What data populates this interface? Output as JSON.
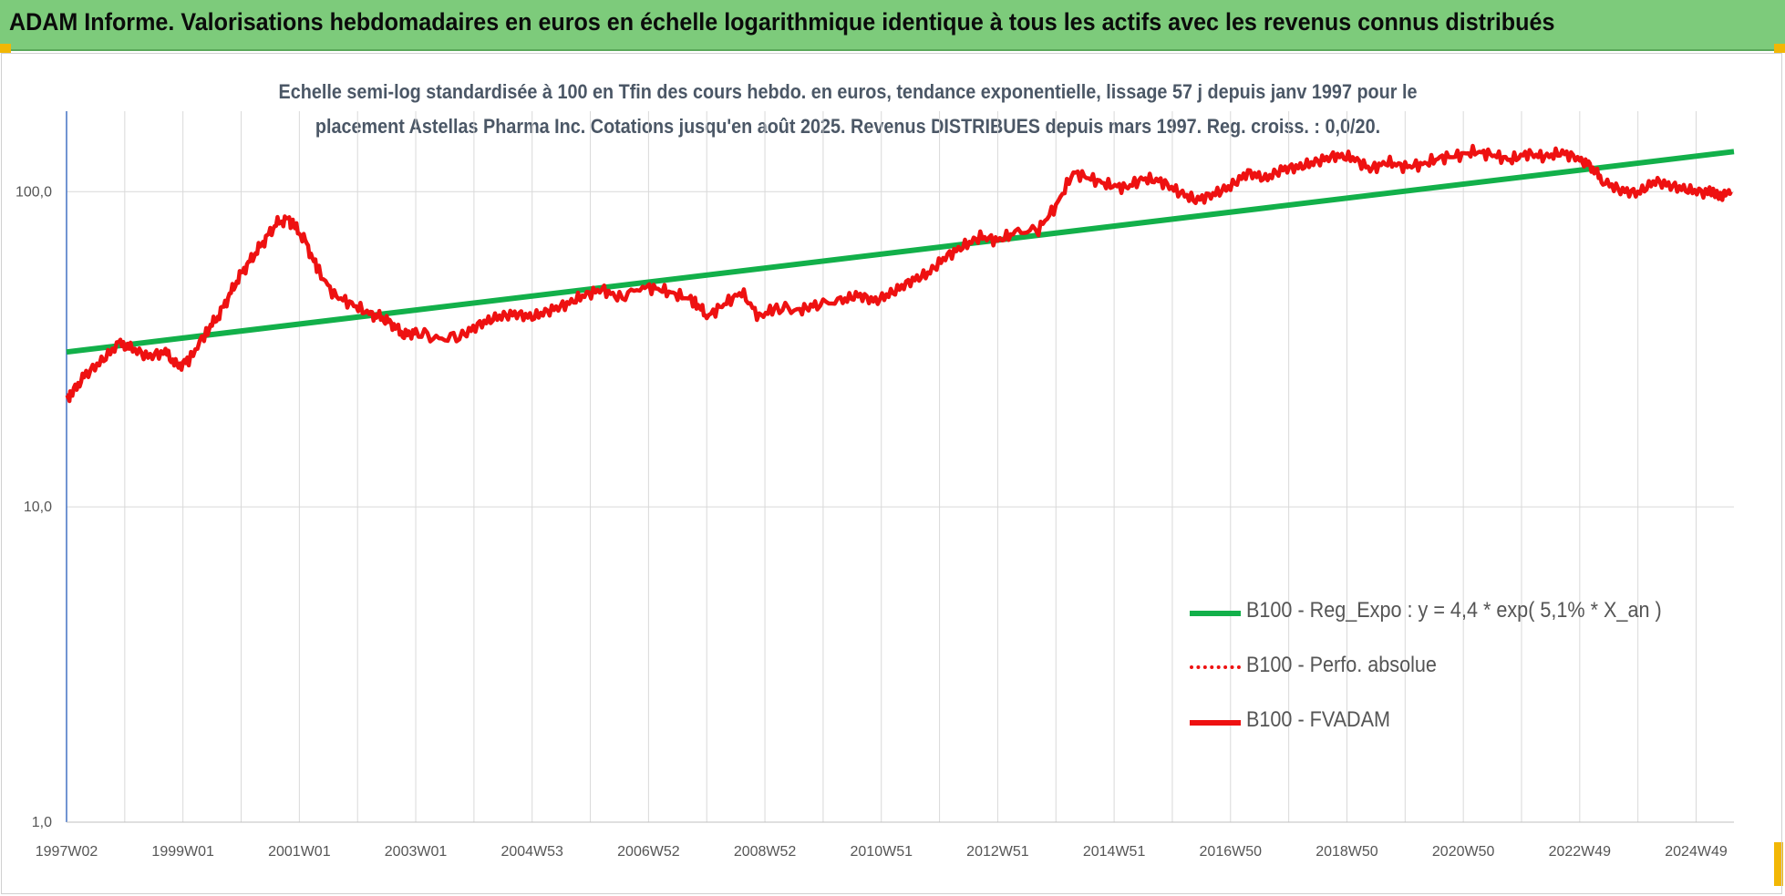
{
  "header": {
    "title": "ADAM Informe. Valorisations hebdomadaires en euros en échelle logarithmique identique à tous les actifs avec les revenus connus distribués"
  },
  "colors": {
    "banner": "#7dcb7b",
    "trend": "#12b04a",
    "price": "#ee1111",
    "grid": "#d9d9d9",
    "axis": "#4472c4",
    "corner": "#f2b705"
  },
  "chart_data": {
    "type": "line",
    "title_lines": [
      "Echelle semi-log standardisée à 100 en Tfin des cours hebdo. en euros, tendance exponentielle, lissage 57 j depuis janv 1997 pour le",
      "placement Astellas Pharma Inc. Cotations jusqu'en août 2025. Revenus DISTRIBUES depuis mars 1997. Reg. croiss. : 0,0/20."
    ],
    "y_scale": "log",
    "ylim": [
      1,
      180
    ],
    "y_ticks": [
      {
        "value": 1,
        "label": "1,0"
      },
      {
        "value": 10,
        "label": "10,0"
      },
      {
        "value": 100,
        "label": "100,0"
      }
    ],
    "xlim": [
      1997.0,
      2025.65
    ],
    "x_ticks": [
      {
        "value": 1997.0,
        "label": "1997W02"
      },
      {
        "value": 1999.0,
        "label": "1999W01"
      },
      {
        "value": 2001.0,
        "label": "2001W01"
      },
      {
        "value": 2003.0,
        "label": "2003W01"
      },
      {
        "value": 2005.0,
        "label": "2004W53"
      },
      {
        "value": 2007.0,
        "label": "2006W52"
      },
      {
        "value": 2009.0,
        "label": "2008W52"
      },
      {
        "value": 2011.0,
        "label": "2010W51"
      },
      {
        "value": 2013.0,
        "label": "2012W51"
      },
      {
        "value": 2015.0,
        "label": "2014W51"
      },
      {
        "value": 2017.0,
        "label": "2016W50"
      },
      {
        "value": 2019.0,
        "label": "2018W50"
      },
      {
        "value": 2021.0,
        "label": "2020W50"
      },
      {
        "value": 2023.0,
        "label": "2022W49"
      },
      {
        "value": 2025.0,
        "label": "2024W49"
      }
    ],
    "grid": true,
    "legend_position": "right",
    "series": [
      {
        "name": "B100 - Reg_Expo : y = 4,4 * exp( 5,1% *  X_an )",
        "style": "solid",
        "color": "#12b04a",
        "x": [
          1997.0,
          2025.65
        ],
        "y": [
          31,
          134
        ]
      },
      {
        "name": "B100 - Perfo. absolue",
        "style": "dotted",
        "color": "#ee1111",
        "x": [],
        "y": []
      },
      {
        "name": "B100 - FVADAM",
        "style": "solid",
        "color": "#ee1111",
        "x": [
          1997.0,
          1997.1,
          1997.3,
          1997.6,
          1997.9,
          1998.1,
          1998.4,
          1998.7,
          1998.9,
          1999.1,
          1999.4,
          1999.6,
          1999.8,
          2000.0,
          2000.2,
          2000.4,
          2000.6,
          2000.8,
          2000.9,
          2001.1,
          2001.3,
          2001.6,
          2001.9,
          2002.2,
          2002.4,
          2002.6,
          2002.8,
          2003.0,
          2003.4,
          2003.8,
          2004.1,
          2004.4,
          2004.7,
          2005.0,
          2005.3,
          2005.6,
          2005.9,
          2006.2,
          2006.5,
          2006.9,
          2007.2,
          2007.5,
          2007.8,
          2008.0,
          2008.3,
          2008.6,
          2008.9,
          2009.2,
          2009.6,
          2009.9,
          2010.3,
          2010.6,
          2010.9,
          2011.2,
          2011.5,
          2011.8,
          2012.1,
          2012.4,
          2012.7,
          2013.0,
          2013.3,
          2013.7,
          2014.0,
          2014.3,
          2014.6,
          2014.9,
          2015.2,
          2015.5,
          2015.8,
          2016.1,
          2016.4,
          2016.7,
          2017.0,
          2017.3,
          2017.6,
          2017.9,
          2018.2,
          2018.5,
          2018.8,
          2019.1,
          2019.4,
          2019.7,
          2020.0,
          2020.3,
          2020.6,
          2020.9,
          2021.2,
          2021.5,
          2021.8,
          2022.1,
          2022.4,
          2022.7,
          2023.0,
          2023.2,
          2023.4,
          2023.7,
          2024.0,
          2024.3,
          2024.6,
          2024.9,
          2025.2,
          2025.45,
          2025.6
        ],
        "y": [
          22,
          23,
          26,
          29,
          33,
          32,
          30,
          31,
          28,
          29,
          36,
          40,
          47,
          55,
          62,
          70,
          79,
          82,
          78,
          70,
          57,
          47,
          44,
          41,
          40,
          38,
          35,
          36,
          34,
          35,
          38,
          40,
          41,
          40,
          42,
          44,
          47,
          49,
          46,
          50,
          49,
          47,
          45,
          40,
          44,
          48,
          40,
          43,
          42,
          44,
          45,
          47,
          45,
          48,
          52,
          55,
          62,
          67,
          72,
          70,
          74,
          76,
          90,
          115,
          110,
          105,
          103,
          110,
          108,
          100,
          94,
          98,
          104,
          115,
          110,
          118,
          120,
          125,
          130,
          128,
          118,
          124,
          120,
          122,
          128,
          130,
          134,
          131,
          126,
          132,
          129,
          133,
          127,
          120,
          108,
          101,
          99,
          108,
          104,
          101,
          99,
          98,
          100
        ]
      }
    ]
  }
}
